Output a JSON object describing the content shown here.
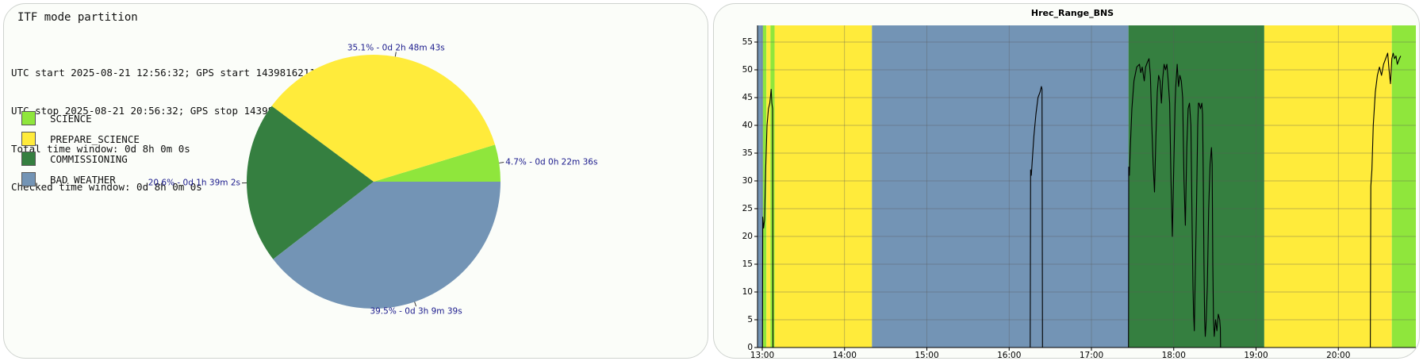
{
  "left_panel": {
    "title": "ITF mode partition",
    "info_lines": [
      "UTC start 2025-08-21 12:56:32; GPS start 1439816211;",
      "UTC stop 2025-08-21 20:56:32; GPS stop 1439845011;",
      "Total time window: 0d 8h 0m 0s",
      "Checked time window: 0d 8h 0m 0s"
    ]
  },
  "colors": {
    "SCIENCE": "#8fe63c",
    "PREPARE_SCIENCE": "#ffeb3b",
    "COMMISSIONING": "#357f40",
    "BAD_WEATHER": "#7394b5",
    "pie_label": "#1a1a8c"
  },
  "chart_data": [
    {
      "type": "pie",
      "title": "",
      "legend_position": "left",
      "slices": [
        {
          "name": "SCIENCE",
          "percent": 4.7,
          "label": "4.7% - 0d 0h 22m 36s"
        },
        {
          "name": "PREPARE_SCIENCE",
          "percent": 35.1,
          "label": "35.1% - 0d 2h 48m 43s"
        },
        {
          "name": "COMMISSIONING",
          "percent": 20.6,
          "label": "20.6% - 0d 1h 39m 2s"
        },
        {
          "name": "BAD_WEATHER",
          "percent": 39.5,
          "label": "39.5% - 0d 3h 9m 39s"
        }
      ]
    },
    {
      "type": "line",
      "title": "Hrec_Range_BNS",
      "xlabel": "",
      "ylabel": "",
      "grid": true,
      "xlim": [
        "12:56:32",
        "20:56:32"
      ],
      "ylim": [
        0,
        58
      ],
      "x_ticks": [
        "13:00",
        "14:00",
        "15:00",
        "16:00",
        "17:00",
        "18:00",
        "19:00",
        "20:00"
      ],
      "y_ticks": [
        0,
        5,
        10,
        15,
        20,
        25,
        30,
        35,
        40,
        45,
        50,
        55
      ],
      "background_bands": [
        {
          "mode": "BAD_WEATHER",
          "start": "12:56:32",
          "end": "13:00:30"
        },
        {
          "mode": "SCIENCE",
          "start": "13:00:30",
          "end": "13:03:00"
        },
        {
          "mode": "PREPARE_SCIENCE",
          "start": "13:03:00",
          "end": "13:06:00"
        },
        {
          "mode": "SCIENCE",
          "start": "13:06:00",
          "end": "13:09:00"
        },
        {
          "mode": "PREPARE_SCIENCE",
          "start": "13:09:00",
          "end": "14:20:00"
        },
        {
          "mode": "BAD_WEATHER",
          "start": "14:20:00",
          "end": "17:27:00"
        },
        {
          "mode": "COMMISSIONING",
          "start": "17:27:00",
          "end": "19:06:00"
        },
        {
          "mode": "PREPARE_SCIENCE",
          "start": "19:06:00",
          "end": "20:39:00"
        },
        {
          "mode": "SCIENCE",
          "start": "20:39:00",
          "end": "20:56:32"
        }
      ],
      "series": [
        {
          "segments": [
            [
              [
                "13:00:10",
                0
              ],
              [
                "13:00:20",
                23.5
              ],
              [
                "13:01:00",
                21.5
              ],
              [
                "13:01:40",
                23
              ],
              [
                "13:02:30",
                32
              ],
              [
                "13:03:30",
                40
              ],
              [
                "13:04:30",
                43
              ],
              [
                "13:05:30",
                44
              ],
              [
                "13:06:30",
                46.5
              ],
              [
                "13:07:00",
                44
              ],
              [
                "13:07:30",
                43
              ],
              [
                "13:07:50",
                0
              ]
            ],
            [
              [
                "16:15:20",
                0
              ],
              [
                "16:15:40",
                32
              ],
              [
                "16:16:10",
                31
              ],
              [
                "16:16:40",
                33
              ],
              [
                "16:18:00",
                38
              ],
              [
                "16:19:30",
                42
              ],
              [
                "16:21:00",
                45
              ],
              [
                "16:22:30",
                46
              ],
              [
                "16:23:30",
                47
              ],
              [
                "16:24:00",
                46.5
              ],
              [
                "16:24:20",
                0
              ]
            ],
            [
              [
                "17:27:00",
                0
              ],
              [
                "17:27:10",
                32.5
              ],
              [
                "17:27:40",
                31
              ],
              [
                "17:28:20",
                36
              ],
              [
                "17:29:30",
                43
              ],
              [
                "17:31:00",
                48
              ],
              [
                "17:33:00",
                50.5
              ],
              [
                "17:35:00",
                51
              ],
              [
                "17:36:00",
                49.5
              ],
              [
                "17:37:00",
                50.5
              ],
              [
                "17:38:30",
                48
              ],
              [
                "17:39:30",
                50.5
              ],
              [
                "17:41:00",
                51.5
              ],
              [
                "17:42:00",
                52
              ],
              [
                "17:43:00",
                49
              ],
              [
                "17:44:00",
                40
              ],
              [
                "17:45:00",
                33
              ],
              [
                "17:46:00",
                28
              ],
              [
                "17:47:00",
                38
              ],
              [
                "17:48:00",
                46
              ],
              [
                "17:49:00",
                49
              ],
              [
                "17:50:00",
                48
              ],
              [
                "17:51:00",
                44
              ],
              [
                "17:52:00",
                48.5
              ],
              [
                "17:53:00",
                51
              ],
              [
                "17:54:00",
                50
              ],
              [
                "17:55:00",
                51
              ],
              [
                "17:56:00",
                48
              ],
              [
                "17:57:00",
                44
              ],
              [
                "17:58:00",
                30
              ],
              [
                "17:59:00",
                20
              ],
              [
                "18:00:00",
                32
              ],
              [
                "18:01:00",
                44
              ],
              [
                "18:01:30",
                47
              ],
              [
                "18:02:30",
                51
              ],
              [
                "18:03:30",
                47
              ],
              [
                "18:04:30",
                49
              ],
              [
                "18:05:30",
                48
              ],
              [
                "18:06:30",
                45
              ],
              [
                "18:07:30",
                30
              ],
              [
                "18:08:30",
                22
              ],
              [
                "18:09:30",
                36
              ],
              [
                "18:10:30",
                43
              ],
              [
                "18:11:30",
                44
              ],
              [
                "18:12:30",
                40
              ],
              [
                "18:13:30",
                20
              ],
              [
                "18:14:00",
                11
              ],
              [
                "18:14:30",
                6
              ],
              [
                "18:15:00",
                3
              ],
              [
                "18:15:30",
                10
              ],
              [
                "18:16:30",
                24
              ],
              [
                "18:17:30",
                40
              ],
              [
                "18:18:00",
                44
              ],
              [
                "18:18:30",
                44
              ],
              [
                "18:19:30",
                43
              ],
              [
                "18:20:30",
                44
              ],
              [
                "18:21:00",
                42
              ],
              [
                "18:21:30",
                32
              ],
              [
                "18:22:00",
                16
              ],
              [
                "18:22:30",
                5
              ],
              [
                "18:23:00",
                2
              ],
              [
                "18:23:30",
                4
              ],
              [
                "18:24:30",
                11
              ],
              [
                "18:25:30",
                25
              ],
              [
                "18:26:30",
                33
              ],
              [
                "18:27:30",
                36
              ],
              [
                "18:28:00",
                33
              ],
              [
                "18:28:30",
                15
              ],
              [
                "18:29:00",
                5
              ],
              [
                "18:29:30",
                2
              ],
              [
                "18:30:30",
                5
              ],
              [
                "18:31:30",
                3
              ],
              [
                "18:32:30",
                6
              ],
              [
                "18:33:30",
                5
              ],
              [
                "18:34:00",
                3.5
              ],
              [
                "18:34:10",
                0
              ]
            ],
            [
              [
                "20:23:20",
                0
              ],
              [
                "20:23:40",
                29
              ],
              [
                "20:24:30",
                32
              ],
              [
                "20:25:30",
                40
              ],
              [
                "20:27:00",
                46
              ],
              [
                "20:28:30",
                49
              ],
              [
                "20:30:00",
                50.5
              ],
              [
                "20:31:30",
                49
              ],
              [
                "20:33:00",
                51
              ],
              [
                "20:34:30",
                52
              ],
              [
                "20:36:00",
                53
              ],
              [
                "20:37:00",
                50
              ],
              [
                "20:38:00",
                47.5
              ],
              [
                "20:39:00",
                52
              ],
              [
                "20:40:00",
                53
              ],
              [
                "20:41:00",
                52
              ],
              [
                "20:42:00",
                52.5
              ],
              [
                "20:43:00",
                51
              ],
              [
                "20:44:30",
                52
              ],
              [
                "20:45:30",
                52.5
              ]
            ]
          ]
        }
      ]
    }
  ]
}
